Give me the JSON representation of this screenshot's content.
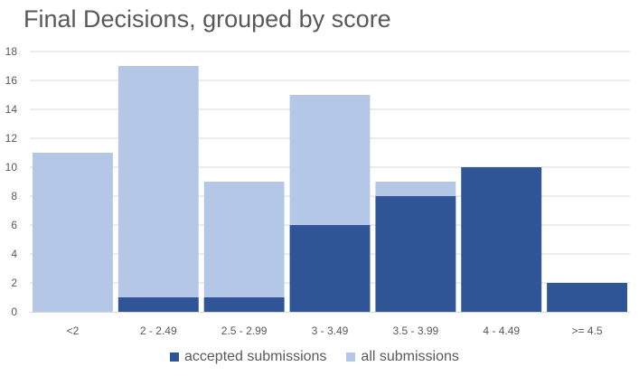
{
  "chart_data": {
    "type": "bar",
    "title": "Final Decisions, grouped by score",
    "categories": [
      "<2",
      "2 - 2.49",
      "2.5 - 2.99",
      "3 - 3.49",
      "3.5 - 3.99",
      "4 - 4.49",
      ">= 4.5"
    ],
    "series": [
      {
        "name": "accepted submissions",
        "values": [
          0,
          1,
          1,
          6,
          8,
          10,
          2
        ],
        "color": "#2F5597"
      },
      {
        "name": "all submissions",
        "values": [
          11,
          17,
          9,
          15,
          9,
          10,
          2
        ],
        "color": "#B4C7E7"
      }
    ],
    "xlabel": "",
    "ylabel": "",
    "ylim": [
      0,
      18
    ],
    "yticks": [
      0,
      2,
      4,
      6,
      8,
      10,
      12,
      14,
      16,
      18
    ],
    "grid": true,
    "legend_position": "bottom"
  }
}
